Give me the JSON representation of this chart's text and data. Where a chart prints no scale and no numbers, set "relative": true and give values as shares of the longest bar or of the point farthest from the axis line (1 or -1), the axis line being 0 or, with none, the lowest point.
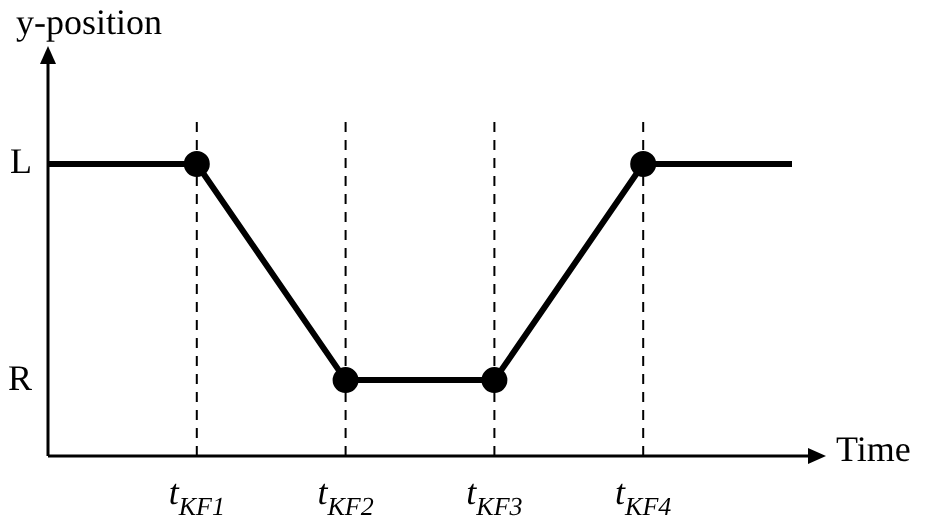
{
  "chart_data": {
    "type": "line",
    "xlabel": "Time",
    "ylabel": "y-position",
    "relative": true,
    "categories": [
      null,
      "t$_{KF1}$",
      "t$_{KF2}$",
      "t$_{KF3}$",
      "t$_{KF4}$",
      null
    ],
    "series": [
      {
        "type": "line",
        "color": "#000000",
        "marker": "none",
        "values": [
          1,
          1,
          0.26,
          0.26,
          1,
          1
        ]
      },
      {
        "type": "scatter",
        "color": "#000000",
        "marker": "circle",
        "values": [
          null,
          1,
          0.26,
          0.26,
          1,
          null
        ]
      }
    ],
    "annotations": [
      "L",
      "R"
    ],
    "grid": "x",
    "legend": false
  }
}
